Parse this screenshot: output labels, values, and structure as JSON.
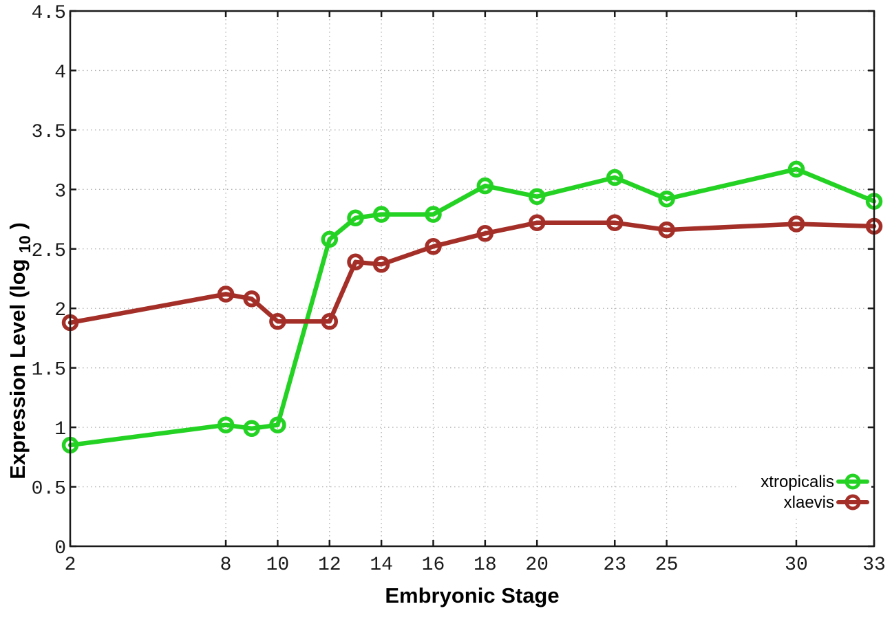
{
  "chart_data": {
    "type": "line",
    "title": "",
    "xlabel": "Embryonic Stage",
    "ylabel": "Expression Level (log10)",
    "ylabel_parts": {
      "main": "Expression Level (log",
      "sub": "10",
      "end": ")"
    },
    "xlim": [
      2,
      33
    ],
    "ylim": [
      0,
      4.5
    ],
    "grid": true,
    "grid_style": "dotted",
    "legend_position": "bottom-right",
    "x": [
      2,
      8,
      9,
      10,
      12,
      13,
      14,
      16,
      18,
      20,
      23,
      25,
      30,
      33
    ],
    "xtick_values": [
      2,
      8,
      10,
      12,
      14,
      16,
      18,
      20,
      23,
      25,
      30,
      33
    ],
    "xtick_labels": [
      "2",
      "8",
      "10",
      "12",
      "14",
      "16",
      "18",
      "20",
      "23",
      "25",
      "30",
      "33"
    ],
    "ytick_values": [
      0,
      0.5,
      1,
      1.5,
      2,
      2.5,
      3,
      3.5,
      4,
      4.5
    ],
    "ytick_labels": [
      "0",
      "0.5",
      "1",
      "1.5",
      "2",
      "2.5",
      "3",
      "3.5",
      "4",
      "4.5"
    ],
    "series": [
      {
        "name": "xtropicalis",
        "color": "#24d224",
        "marker": "open-circle",
        "values": [
          0.85,
          1.02,
          0.99,
          1.02,
          2.58,
          2.76,
          2.79,
          2.79,
          3.03,
          2.94,
          3.1,
          2.92,
          3.17,
          2.9
        ]
      },
      {
        "name": "xlaevis",
        "color": "#a42f28",
        "marker": "open-circle",
        "values": [
          1.88,
          2.12,
          2.08,
          1.89,
          1.89,
          2.39,
          2.37,
          2.52,
          2.63,
          2.72,
          2.72,
          2.66,
          2.71,
          2.69
        ]
      }
    ],
    "colors": {
      "axis": "#1a1a1a",
      "gridline": "#b0b0b0",
      "background": "#ffffff"
    }
  }
}
